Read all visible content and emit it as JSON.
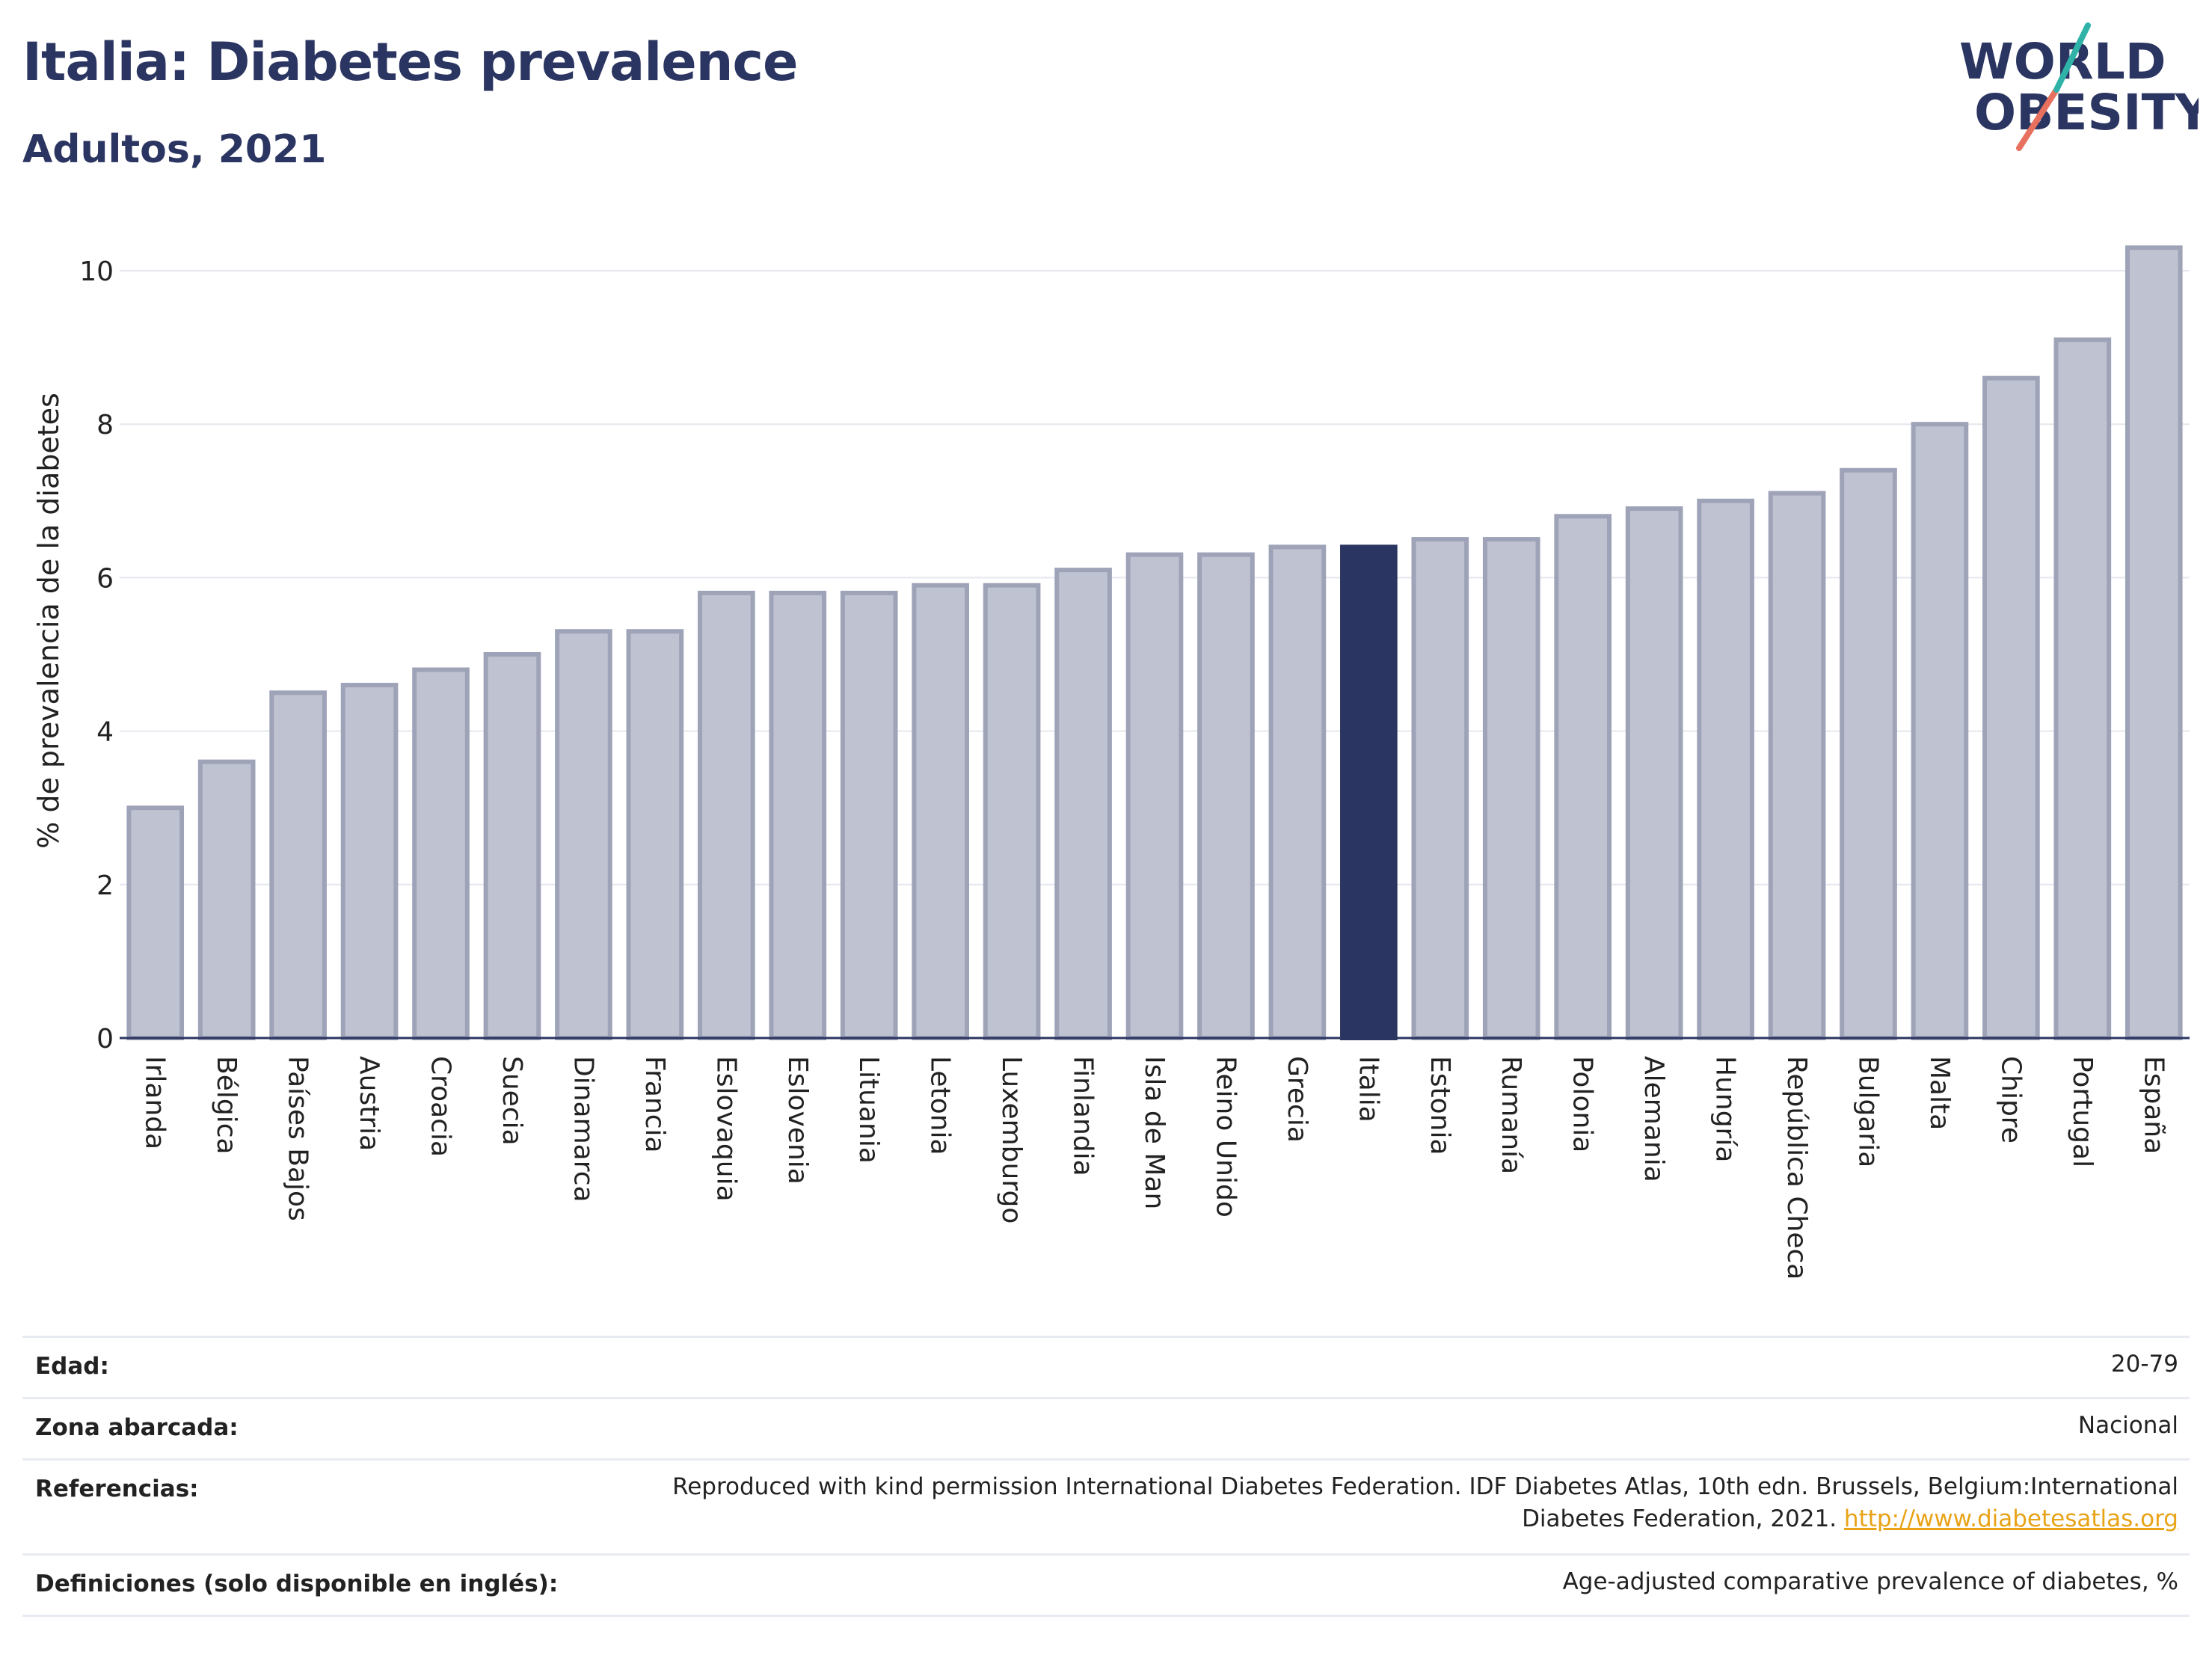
{
  "header": {
    "title": "Italia: Diabetes prevalence",
    "subtitle": "Adultos, 2021"
  },
  "logo": {
    "line1": "WORLD",
    "line2": "OBESITY",
    "icon": "world-obesity-logo"
  },
  "chart_data": {
    "type": "bar",
    "ylabel": "% de prevalencia de la diabetes",
    "xlabel": "",
    "ylim": [
      0,
      10.5
    ],
    "yticks": [
      0,
      2,
      4,
      6,
      8,
      10
    ],
    "grid": true,
    "categories": [
      "Irlanda",
      "Bélgica",
      "Países Bajos",
      "Austria",
      "Croacia",
      "Suecia",
      "Dinamarca",
      "Francia",
      "Eslovaquia",
      "Eslovenia",
      "Lituania",
      "Letonia",
      "Luxemburgo",
      "Finlandia",
      "Isla de Man",
      "Reino Unido",
      "Grecia",
      "Italia",
      "Estonia",
      "Rumanía",
      "Polonia",
      "Alemania",
      "Hungría",
      "República Checa",
      "Bulgaria",
      "Malta",
      "Chipre",
      "Portugal",
      "España"
    ],
    "values": [
      3.0,
      3.6,
      4.5,
      4.6,
      4.8,
      5.0,
      5.3,
      5.3,
      5.8,
      5.8,
      5.8,
      5.9,
      5.9,
      6.1,
      6.3,
      6.3,
      6.4,
      6.4,
      6.5,
      6.5,
      6.8,
      6.9,
      7.0,
      7.1,
      7.4,
      8.0,
      8.6,
      9.1,
      10.3
    ],
    "highlight": "Italia",
    "colors": {
      "bar": "#bfc2d0",
      "bar_border": "#9ea3b8",
      "highlight": "#2b3561",
      "grid": "#e5e7ee",
      "axis": "#2b3561"
    }
  },
  "info": [
    {
      "key": "Edad:",
      "value": "20-79"
    },
    {
      "key": "Zona abarcada:",
      "value": "Nacional"
    },
    {
      "key": "Referencias:",
      "value_line1": "Reproduced with kind permission International Diabetes Federation.  IDF Diabetes Atlas, 10th edn. Brussels, Belgium:International",
      "value_line2": "Diabetes Federation, 2021.",
      "link": "http://www.diabetesatlas.org"
    },
    {
      "key": "Definiciones (solo disponible en inglés):",
      "value": "Age-adjusted comparative prevalence of diabetes, %"
    }
  ]
}
